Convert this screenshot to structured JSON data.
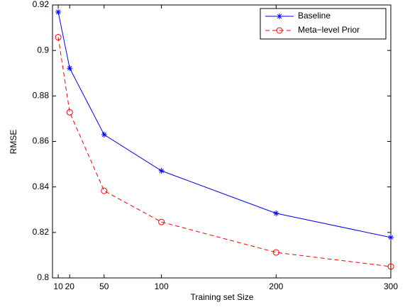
{
  "chart_data": {
    "type": "line",
    "x_label": "Training set Size",
    "y_label": "RMSE",
    "x": [
      10,
      20,
      50,
      100,
      200,
      300
    ],
    "series": [
      {
        "name": "Baseline",
        "color": "#0000ff",
        "line_style": "solid",
        "marker": "*",
        "values": [
          0.9169,
          0.8922,
          0.863,
          0.8471,
          0.8284,
          0.8178
        ]
      },
      {
        "name": "Meta−level Prior",
        "color": "#ff0000",
        "line_style": "dashed",
        "marker": "o",
        "values": [
          0.9058,
          0.8728,
          0.8383,
          0.8246,
          0.8112,
          0.805
        ]
      }
    ],
    "xlim": [
      5,
      300
    ],
    "ylim": [
      0.8,
      0.92
    ],
    "xticks": [
      10,
      20,
      50,
      100,
      200,
      300
    ],
    "yticks": [
      0.8,
      0.82,
      0.84,
      0.86,
      0.88,
      0.9,
      0.92
    ],
    "legend": "upper right",
    "grid": false
  }
}
